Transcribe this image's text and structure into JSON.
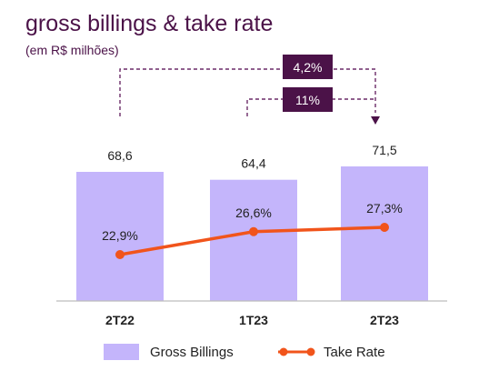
{
  "chart_data": {
    "type": "bar",
    "title": "gross billings & take rate",
    "subtitle": "(em R$ milhões)",
    "categories": [
      "2T22",
      "1T23",
      "2T23"
    ],
    "series": [
      {
        "name": "Gross Billings",
        "type": "bar",
        "values": [
          68.6,
          64.4,
          71.5
        ],
        "labels": [
          "68,6",
          "64,4",
          "71,5"
        ]
      },
      {
        "name": "Take Rate",
        "type": "line",
        "values": [
          22.9,
          26.6,
          27.3
        ],
        "labels": [
          "22,9%",
          "26,6%",
          "27,3%"
        ]
      }
    ],
    "annotations": [
      {
        "text": "4,2%",
        "from": "2T22",
        "to": "2T23"
      },
      {
        "text": "11%",
        "from": "1T23",
        "to": "2T23"
      }
    ],
    "colors": {
      "bar": "#c4b5fb",
      "line": "#f1541b",
      "annotation_box": "#4b1248",
      "title": "#4b1248",
      "connector": "#6b2c68"
    },
    "legend_position": "bottom",
    "grid": false
  }
}
